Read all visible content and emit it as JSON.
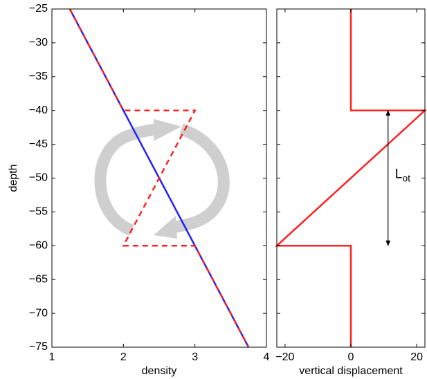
{
  "chart_data": [
    {
      "type": "line",
      "xlabel": "density",
      "ylabel": "depth",
      "xlim": [
        1,
        4
      ],
      "ylim": [
        -75,
        -25
      ],
      "xticks": [
        1,
        2,
        3,
        4
      ],
      "yticks": [
        {
          "value": -75,
          "label": "−75"
        },
        {
          "value": -70,
          "label": "−70"
        },
        {
          "value": -65,
          "label": "−65"
        },
        {
          "value": -60,
          "label": "−60"
        },
        {
          "value": -55,
          "label": "−55"
        },
        {
          "value": -50,
          "label": "−50"
        },
        {
          "value": -45,
          "label": "−45"
        },
        {
          "value": -40,
          "label": "−40"
        },
        {
          "value": -35,
          "label": "−35"
        },
        {
          "value": -30,
          "label": "−30"
        },
        {
          "value": -25,
          "label": "−25"
        }
      ],
      "show_ytick_labels": true,
      "series": [
        {
          "color": "#1f1fff",
          "dashed": false,
          "x": [
            1.25,
            3.75
          ],
          "values": [
            -25,
            -75
          ]
        },
        {
          "color": "#ff2020",
          "dashed": true,
          "x": [
            1.25,
            2,
            3,
            2,
            3,
            3.75
          ],
          "values": [
            -25,
            -40,
            -40,
            -60,
            -60,
            -75
          ]
        }
      ]
    },
    {
      "type": "line",
      "xlabel": "vertical displacement",
      "xlim": [
        -22.5,
        22.5
      ],
      "ylim": [
        -75,
        -25
      ],
      "xticks": [
        {
          "value": -20,
          "label": "−20"
        },
        0,
        20
      ],
      "yticks": [
        -75,
        -70,
        -65,
        -60,
        -55,
        -50,
        -45,
        -40,
        -35,
        -30,
        -25
      ],
      "show_ytick_labels": false,
      "series": [
        {
          "color": "#ff2020",
          "dashed": false,
          "x": [
            0,
            0,
            22.5,
            -22.5,
            0,
            0
          ],
          "values": [
            -25,
            -40,
            -40,
            -60,
            -60,
            -75
          ]
        }
      ],
      "annotation": {
        "text": "L",
        "subscript": "ot",
        "x": 11.3,
        "y": [
          -40,
          -60
        ]
      }
    }
  ]
}
